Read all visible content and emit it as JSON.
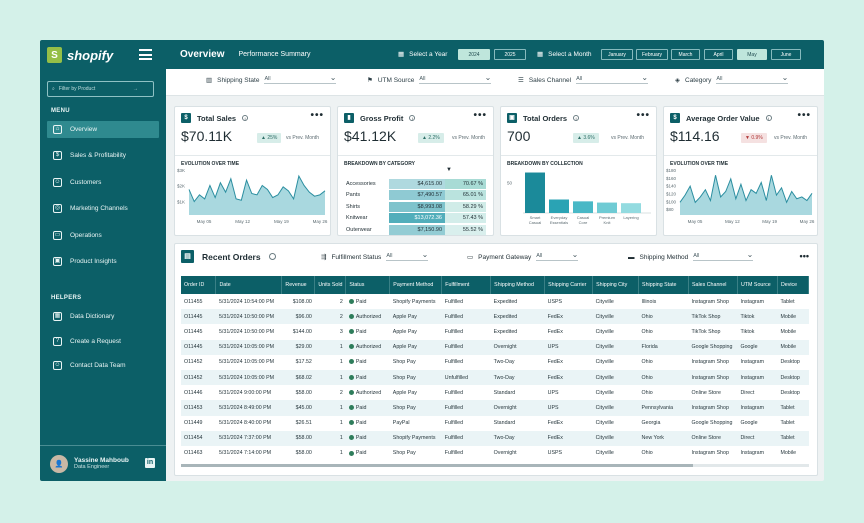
{
  "sidebar": {
    "logo": "shopify",
    "filter_placeholder": "Filter by Product",
    "menu_label": "MENU",
    "helpers_label": "HELPERS",
    "menu_items": [
      "Overview",
      "Sales & Profitability",
      "Customers",
      "Marketing Channels",
      "Operations",
      "Product Insights"
    ],
    "helper_items": [
      "Data Dictionary",
      "Create a Request",
      "Contact Data Team"
    ],
    "user_name": "Yassine Mahboub",
    "user_role": "Data Engineer"
  },
  "topbar": {
    "title": "Overview",
    "subtitle": "Performance Summary",
    "year_label": "Select a Year",
    "years": [
      "2024",
      "2025"
    ],
    "month_label": "Select a Month",
    "months": [
      "January",
      "February",
      "March",
      "April",
      "May",
      "June"
    ]
  },
  "filters": [
    {
      "label": "Shipping State",
      "value": "All"
    },
    {
      "label": "UTM Source",
      "value": "All"
    },
    {
      "label": "Sales Channel",
      "value": "All"
    },
    {
      "label": "Category",
      "value": "All"
    }
  ],
  "kpis": {
    "sales": {
      "title": "Total Sales",
      "value": "$70.11K",
      "delta": "▲ 25%",
      "vs": "vs Prev. Month",
      "chart_title": "EVOLUTION OVER TIME",
      "yticks": [
        "$3K",
        "$2K",
        "$1K"
      ],
      "xticks": [
        "May 05",
        "May 12",
        "May 19",
        "May 26"
      ]
    },
    "profit": {
      "title": "Gross Profit",
      "value": "$41.12K",
      "delta": "▲ 2.2%",
      "vs": "vs Prev. Month",
      "chart_title": "BREAKDOWN BY CATEGORY"
    },
    "orders": {
      "title": "Total Orders",
      "value": "700",
      "delta": "▲ 3.6%",
      "vs": "vs Prev. Month",
      "chart_title": "BREAKDOWN BY COLLECTION",
      "ytick": "50"
    },
    "aov": {
      "title": "Average Order Value",
      "value": "$114.16",
      "delta": "▼ 0.9%",
      "vs": "vs Prev. Month",
      "chart_title": "EVOLUTION OVER TIME",
      "yticks": [
        "$180",
        "$160",
        "$140",
        "$120",
        "$100",
        "$80"
      ],
      "xticks": [
        "May 05",
        "May 12",
        "May 19",
        "May 26"
      ]
    }
  },
  "categories": [
    {
      "name": "Accessories",
      "value": "$4,615.00",
      "pct": "70.67 %"
    },
    {
      "name": "Pants",
      "value": "$7,490.57",
      "pct": "65.01 %"
    },
    {
      "name": "Shirts",
      "value": "$8,993.08",
      "pct": "58.29 %"
    },
    {
      "name": "Knitwear",
      "value": "$13,072.36",
      "pct": "57.43 %"
    },
    {
      "name": "Outerwear",
      "value": "$7,150.90",
      "pct": "55.52 %"
    }
  ],
  "chart_data": [
    {
      "type": "area",
      "title": "Total Sales – Evolution Over Time",
      "ylim": [
        0,
        3500
      ],
      "values": [
        1900,
        1000,
        1500,
        1200,
        2200,
        1300,
        2400,
        1700,
        2700,
        1200,
        1100,
        2600,
        1600,
        1500,
        2200,
        1900,
        1300,
        1500,
        2100,
        1800,
        1200,
        2900,
        2200,
        1700,
        1400,
        1500,
        1800
      ]
    },
    {
      "type": "bar",
      "title": "Total Orders – Breakdown by Collection",
      "categories": [
        "Smart Casual",
        "Everyday Essentials",
        "Casual Core",
        "Premium Knit",
        "Layering"
      ],
      "values": [
        66,
        22,
        19,
        17,
        16
      ],
      "ylim": [
        0,
        75
      ]
    },
    {
      "type": "area",
      "title": "Average Order Value – Evolution Over Time",
      "ylim": [
        60,
        190
      ],
      "values": [
        95,
        115,
        140,
        95,
        110,
        130,
        100,
        170,
        110,
        125,
        160,
        105,
        145,
        100,
        130,
        120,
        150,
        100,
        170,
        115,
        135,
        95,
        125,
        105,
        110,
        100,
        120
      ]
    }
  ],
  "orders": {
    "title": "Recent Orders",
    "filters": [
      {
        "label": "Fulfillment Status",
        "value": "All"
      },
      {
        "label": "Payment Gateway",
        "value": "All"
      },
      {
        "label": "Shipping Method",
        "value": "All"
      }
    ],
    "columns": [
      "Order ID",
      "Date",
      "Revenue",
      "Units Sold",
      "Status",
      "Payment Method",
      "Fulfillment",
      "Shipping Method",
      "Shipping Carrier",
      "Shipping City",
      "Shipping State",
      "Sales Channel",
      "UTM Source",
      "Device"
    ],
    "rows": [
      [
        "O11455",
        "5/31/2024 10:54:00 PM",
        "$108.00",
        "2",
        "Paid",
        "Shopify Payments",
        "Fulfilled",
        "Expedited",
        "USPS",
        "Cityville",
        "Illinois",
        "Instagram Shop",
        "Instagram",
        "Tablet"
      ],
      [
        "O11445",
        "5/31/2024 10:50:00 PM",
        "$96.00",
        "2",
        "Authorized",
        "Apple Pay",
        "Fulfilled",
        "Expedited",
        "FedEx",
        "Cityville",
        "Ohio",
        "TikTok Shop",
        "Tiktok",
        "Mobile"
      ],
      [
        "O11445",
        "5/31/2024 10:50:00 PM",
        "$144.00",
        "3",
        "Paid",
        "Apple Pay",
        "Fulfilled",
        "Expedited",
        "FedEx",
        "Cityville",
        "Ohio",
        "TikTok Shop",
        "Tiktok",
        "Mobile"
      ],
      [
        "O11445",
        "5/31/2024 10:05:00 PM",
        "$29.00",
        "1",
        "Authorized",
        "Apple Pay",
        "Fulfilled",
        "Overnight",
        "UPS",
        "Cityville",
        "Florida",
        "Google Shopping",
        "Google",
        "Mobile"
      ],
      [
        "O11452",
        "5/31/2024 10:05:00 PM",
        "$17.52",
        "1",
        "Paid",
        "Shop Pay",
        "Fulfilled",
        "Two-Day",
        "FedEx",
        "Cityville",
        "Ohio",
        "Instagram Shop",
        "Instagram",
        "Desktop"
      ],
      [
        "O11452",
        "5/31/2024 10:05:00 PM",
        "$68.02",
        "1",
        "Paid",
        "Shop Pay",
        "Unfulfilled",
        "Two-Day",
        "FedEx",
        "Cityville",
        "Ohio",
        "Instagram Shop",
        "Instagram",
        "Desktop"
      ],
      [
        "O11446",
        "5/31/2024 9:00:00 PM",
        "$58.00",
        "2",
        "Authorized",
        "Apple Pay",
        "Fulfilled",
        "Standard",
        "UPS",
        "Cityville",
        "Ohio",
        "Online Store",
        "Direct",
        "Desktop"
      ],
      [
        "O11453",
        "5/31/2024 8:49:00 PM",
        "$45.00",
        "1",
        "Paid",
        "Shop Pay",
        "Fulfilled",
        "Overnight",
        "UPS",
        "Cityville",
        "Pennsylvania",
        "Instagram Shop",
        "Instagram",
        "Tablet"
      ],
      [
        "O11449",
        "5/31/2024 8:40:00 PM",
        "$26.51",
        "1",
        "Paid",
        "PayPal",
        "Fulfilled",
        "Standard",
        "FedEx",
        "Cityville",
        "Georgia",
        "Google Shopping",
        "Google",
        "Tablet"
      ],
      [
        "O11454",
        "5/31/2024 7:37:00 PM",
        "$58.00",
        "1",
        "Paid",
        "Shopify Payments",
        "Fulfilled",
        "Two-Day",
        "FedEx",
        "Cityville",
        "New York",
        "Online Store",
        "Direct",
        "Tablet"
      ],
      [
        "O11463",
        "5/31/2024 7:14:00 PM",
        "$58.00",
        "1",
        "Paid",
        "Shop Pay",
        "Fulfilled",
        "Overnight",
        "USPS",
        "Cityville",
        "Ohio",
        "Instagram Shop",
        "Instagram",
        "Mobile"
      ]
    ]
  }
}
